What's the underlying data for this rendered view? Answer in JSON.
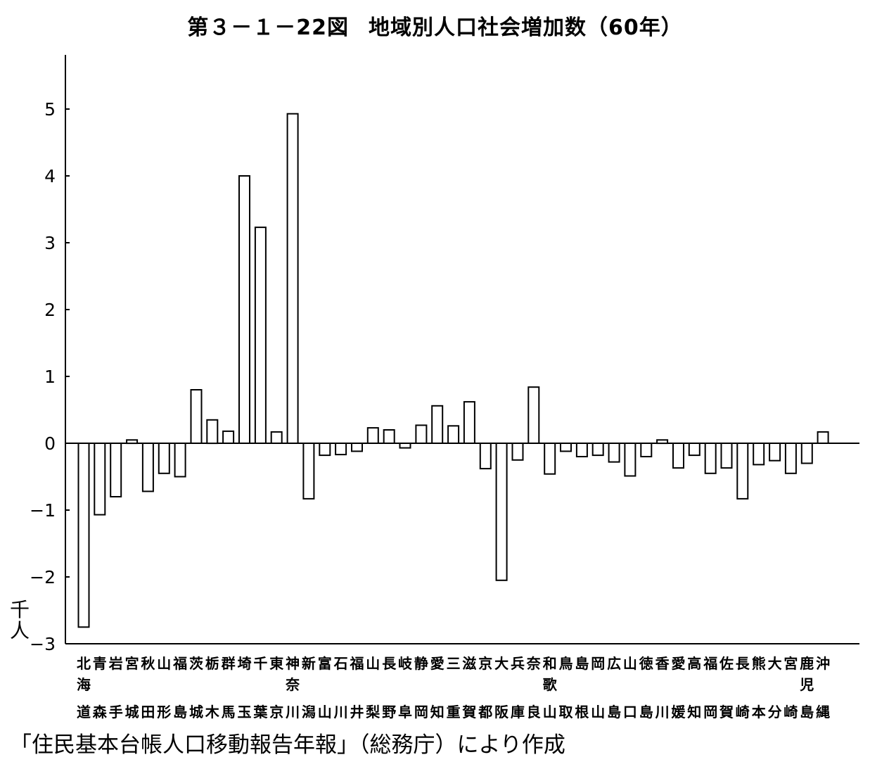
{
  "figure": {
    "number": "第３－１－22図",
    "title": "地域別人口社会増加数（60年）",
    "unit": "千人",
    "source": "「住民基本台帳人口移動報告年報」（総務庁）により作成"
  },
  "chart_data": {
    "type": "bar",
    "title": "地域別人口社会増加数（60年）",
    "ylabel": "千人",
    "xlabel": "",
    "ylim": [
      -3,
      5.8
    ],
    "yticks": [
      "5",
      "4",
      "3",
      "2",
      "1",
      "0",
      "−1",
      "−2",
      "−3"
    ],
    "ytick_values": [
      5,
      4,
      3,
      2,
      1,
      0,
      -1,
      -2,
      -3
    ],
    "grid": false,
    "categories": [
      "北海道",
      "青森",
      "岩手",
      "宮城",
      "秋田",
      "山形",
      "福島",
      "茨城",
      "栃木",
      "群馬",
      "埼玉",
      "千葉",
      "東京",
      "神奈川",
      "新潟",
      "富山",
      "石川",
      "福井",
      "山梨",
      "長野",
      "岐阜",
      "静岡",
      "愛知",
      "三重",
      "滋賀",
      "京都",
      "大阪",
      "兵庫",
      "奈良",
      "和歌山",
      "鳥取",
      "島根",
      "岡山",
      "広島",
      "山口",
      "徳島",
      "香川",
      "愛媛",
      "高知",
      "福岡",
      "佐賀",
      "長崎",
      "熊本",
      "大分",
      "宮崎",
      "鹿児島",
      "沖縄"
    ],
    "category_label_lines": [
      [
        "北",
        "海",
        "道"
      ],
      [
        "青",
        "",
        "森"
      ],
      [
        "岩",
        "",
        "手"
      ],
      [
        "宮",
        "",
        "城"
      ],
      [
        "秋",
        "",
        "田"
      ],
      [
        "山",
        "",
        "形"
      ],
      [
        "福",
        "",
        "島"
      ],
      [
        "茨",
        "",
        "城"
      ],
      [
        "栃",
        "",
        "木"
      ],
      [
        "群",
        "",
        "馬"
      ],
      [
        "埼",
        "",
        "玉"
      ],
      [
        "千",
        "",
        "葉"
      ],
      [
        "東",
        "",
        "京"
      ],
      [
        "神",
        "奈",
        "川"
      ],
      [
        "新",
        "",
        "潟"
      ],
      [
        "富",
        "",
        "山"
      ],
      [
        "石",
        "",
        "川"
      ],
      [
        "福",
        "",
        "井"
      ],
      [
        "山",
        "",
        "梨"
      ],
      [
        "長",
        "",
        "野"
      ],
      [
        "岐",
        "",
        "阜"
      ],
      [
        "静",
        "",
        "岡"
      ],
      [
        "愛",
        "",
        "知"
      ],
      [
        "三",
        "",
        "重"
      ],
      [
        "滋",
        "",
        "賀"
      ],
      [
        "京",
        "",
        "都"
      ],
      [
        "大",
        "",
        "阪"
      ],
      [
        "兵",
        "",
        "庫"
      ],
      [
        "奈",
        "",
        "良"
      ],
      [
        "和",
        "歌",
        "山"
      ],
      [
        "鳥",
        "",
        "取"
      ],
      [
        "島",
        "",
        "根"
      ],
      [
        "岡",
        "",
        "山"
      ],
      [
        "広",
        "",
        "島"
      ],
      [
        "山",
        "",
        "口"
      ],
      [
        "徳",
        "",
        "島"
      ],
      [
        "香",
        "",
        "川"
      ],
      [
        "愛",
        "",
        "媛"
      ],
      [
        "高",
        "",
        "知"
      ],
      [
        "福",
        "",
        "岡"
      ],
      [
        "佐",
        "",
        "賀"
      ],
      [
        "長",
        "",
        "崎"
      ],
      [
        "熊",
        "",
        "本"
      ],
      [
        "大",
        "",
        "分"
      ],
      [
        "宮",
        "",
        "崎"
      ],
      [
        "鹿",
        "児",
        "島"
      ],
      [
        "沖",
        "",
        "縄"
      ]
    ],
    "values": [
      -2.75,
      -1.07,
      -0.8,
      0.05,
      -0.72,
      -0.45,
      -0.5,
      0.8,
      0.35,
      0.18,
      4.0,
      3.23,
      0.17,
      4.93,
      -0.83,
      -0.18,
      -0.17,
      -0.12,
      0.23,
      0.2,
      -0.07,
      0.27,
      0.56,
      0.26,
      0.62,
      -0.38,
      -2.05,
      -0.25,
      0.84,
      -0.46,
      -0.12,
      -0.2,
      -0.18,
      -0.28,
      -0.49,
      -0.2,
      0.05,
      -0.37,
      -0.18,
      -0.45,
      -0.37,
      -0.83,
      -0.32,
      -0.26,
      -0.45,
      -0.3,
      0.17
    ],
    "bar_fill": "#ffffff",
    "bar_stroke": "#000000"
  }
}
